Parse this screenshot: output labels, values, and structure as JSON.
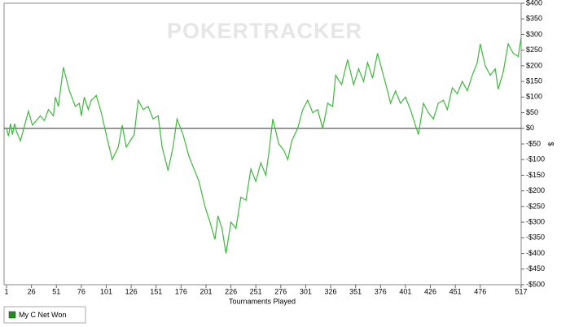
{
  "chart_data": {
    "type": "line",
    "watermark": "POKERTRACKER",
    "x_label": "Tournaments Played",
    "y_label": "$",
    "xlim": [
      1,
      517
    ],
    "xticks": [
      1,
      26,
      51,
      76,
      101,
      126,
      151,
      176,
      201,
      226,
      251,
      276,
      301,
      326,
      351,
      376,
      401,
      426,
      451,
      476,
      517
    ],
    "ylim": [
      -500,
      400
    ],
    "yticks": [
      {
        "value": 400,
        "label": "$400"
      },
      {
        "value": 350,
        "label": "$350"
      },
      {
        "value": 300,
        "label": "$300"
      },
      {
        "value": 250,
        "label": "$250"
      },
      {
        "value": 200,
        "label": "$200"
      },
      {
        "value": 150,
        "label": "$150"
      },
      {
        "value": 100,
        "label": "$100"
      },
      {
        "value": 50,
        "label": "$50"
      },
      {
        "value": 0,
        "label": "$0"
      },
      {
        "value": -50,
        "label": "-$50"
      },
      {
        "value": -100,
        "label": "-$100"
      },
      {
        "value": -150,
        "label": "-$150"
      },
      {
        "value": -200,
        "label": "-$200"
      },
      {
        "value": -250,
        "label": "-$250"
      },
      {
        "value": -300,
        "label": "-$300"
      },
      {
        "value": -350,
        "label": "-$350"
      },
      {
        "value": -400,
        "label": "-$400"
      },
      {
        "value": -450,
        "label": "-$450"
      },
      {
        "value": -500,
        "label": "-$500"
      }
    ],
    "legend": "bottom-left",
    "x": [
      1,
      3,
      5,
      7,
      9,
      11,
      15,
      23,
      27,
      35,
      39,
      43,
      48,
      50,
      53,
      58,
      64,
      70,
      74,
      76,
      79,
      83,
      86,
      91,
      96,
      101,
      107,
      113,
      117,
      121,
      125,
      129,
      133,
      138,
      143,
      148,
      153,
      157,
      163,
      168,
      172,
      178,
      184,
      189,
      194,
      200,
      205,
      210,
      213,
      217,
      221,
      226,
      231,
      236,
      241,
      246,
      251,
      256,
      261,
      264,
      268,
      274,
      279,
      283,
      287,
      293,
      298,
      303,
      308,
      313,
      318,
      323,
      328,
      331,
      337,
      343,
      349,
      354,
      359,
      363,
      368,
      373,
      378,
      383,
      386,
      391,
      396,
      401,
      406,
      409,
      414,
      419,
      424,
      429,
      434,
      439,
      443,
      448,
      453,
      458,
      463,
      468,
      473,
      476,
      481,
      486,
      491,
      494,
      499,
      504,
      509,
      514,
      517
    ],
    "series": [
      {
        "name": "My C Net Won",
        "color": "#3cb93c",
        "legend_color": "#1e8c1e",
        "values": [
          0,
          -25,
          15,
          -20,
          15,
          -10,
          -40,
          55,
          10,
          40,
          25,
          60,
          40,
          100,
          70,
          195,
          120,
          70,
          80,
          40,
          100,
          60,
          90,
          105,
          50,
          -20,
          -100,
          -60,
          10,
          -60,
          -40,
          -20,
          90,
          60,
          70,
          30,
          40,
          -60,
          -135,
          -60,
          30,
          -20,
          -90,
          -130,
          -170,
          -250,
          -300,
          -355,
          -280,
          -320,
          -400,
          -300,
          -320,
          -220,
          -230,
          -130,
          -170,
          -110,
          -150,
          -80,
          30,
          -50,
          -70,
          -100,
          -40,
          0,
          60,
          90,
          50,
          60,
          0,
          80,
          70,
          170,
          140,
          220,
          140,
          190,
          150,
          210,
          160,
          240,
          180,
          120,
          80,
          120,
          80,
          100,
          60,
          30,
          -20,
          80,
          50,
          30,
          80,
          90,
          60,
          130,
          110,
          150,
          120,
          170,
          210,
          270,
          200,
          170,
          190,
          125,
          180,
          270,
          240,
          230,
          290
        ]
      }
    ]
  }
}
